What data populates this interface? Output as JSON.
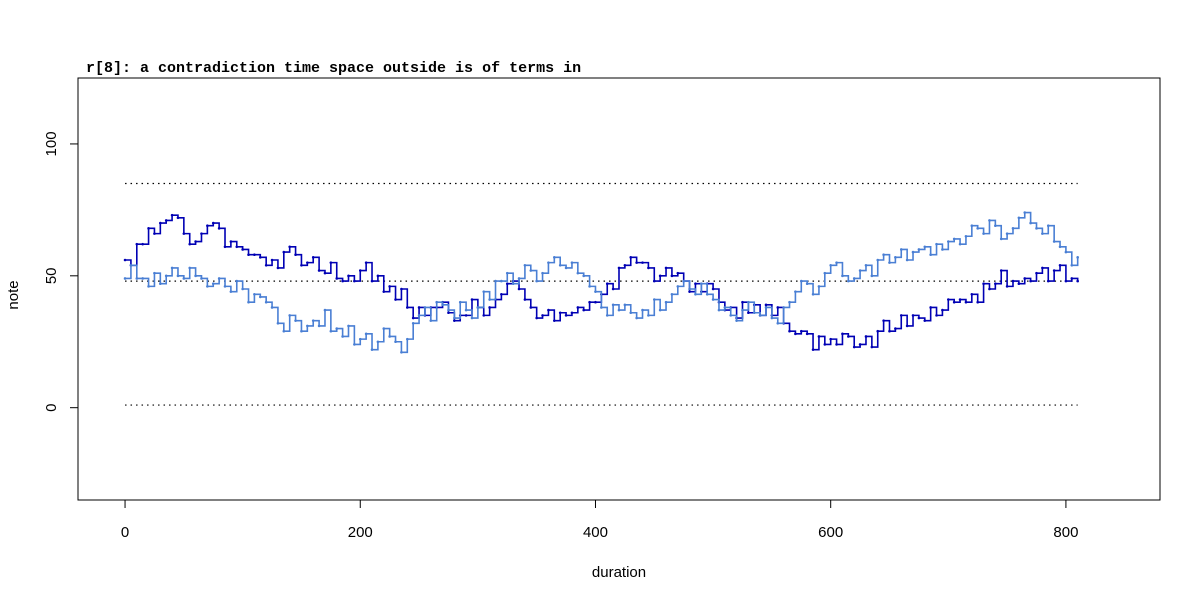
{
  "chart_data": {
    "type": "line",
    "title": "r[8]: a contradiction time space outside is of terms in",
    "xlabel": "duration",
    "ylabel": "note",
    "xlim": [
      -40,
      880
    ],
    "ylim": [
      -35,
      125
    ],
    "x_ticks": [
      0,
      200,
      400,
      600,
      800
    ],
    "y_ticks": [
      0,
      50,
      100
    ],
    "x_tick_labels": [
      "0",
      "200",
      "400",
      "600",
      "800"
    ],
    "y_tick_labels": [
      "0",
      "50",
      "100"
    ],
    "grid": false,
    "legend": "none",
    "step": true,
    "reference_lines": [
      {
        "y": 85,
        "x": [
          0,
          810
        ],
        "style": "dotted",
        "color": "#000000"
      },
      {
        "y": 48,
        "x": [
          0,
          810
        ],
        "style": "dotted",
        "color": "#000000"
      },
      {
        "y": 1,
        "x": [
          0,
          810
        ],
        "style": "dotted",
        "color": "#000000"
      }
    ],
    "series": [
      {
        "color": "#0000b4",
        "x": [
          0,
          5,
          10,
          15,
          20,
          25,
          30,
          35,
          40,
          45,
          50,
          55,
          60,
          65,
          70,
          75,
          80,
          85,
          90,
          95,
          100,
          105,
          110,
          115,
          120,
          125,
          130,
          135,
          140,
          145,
          150,
          155,
          160,
          165,
          170,
          175,
          180,
          185,
          190,
          195,
          200,
          205,
          210,
          215,
          220,
          225,
          230,
          235,
          240,
          245,
          250,
          255,
          260,
          265,
          270,
          275,
          280,
          285,
          290,
          295,
          300,
          305,
          310,
          315,
          320,
          325,
          330,
          335,
          340,
          345,
          350,
          355,
          360,
          365,
          370,
          375,
          380,
          385,
          390,
          395,
          400,
          405,
          410,
          415,
          420,
          425,
          430,
          435,
          440,
          445,
          450,
          455,
          460,
          465,
          470,
          475,
          480,
          485,
          490,
          495,
          500,
          505,
          510,
          515,
          520,
          525,
          530,
          535,
          540,
          545,
          550,
          555,
          560,
          565,
          570,
          575,
          580,
          585,
          590,
          595,
          600,
          605,
          610,
          615,
          620,
          625,
          630,
          635,
          640,
          645,
          650,
          655,
          660,
          665,
          670,
          675,
          680,
          685,
          690,
          695,
          700,
          705,
          710,
          715,
          720,
          725,
          730,
          735,
          740,
          745,
          750,
          755,
          760,
          765,
          770,
          775,
          780,
          785,
          790,
          795,
          800,
          805,
          810
        ],
        "y": [
          56,
          54,
          62,
          62,
          68,
          66,
          70,
          71,
          73,
          72,
          66,
          62,
          63,
          66,
          69,
          70,
          68,
          61,
          63,
          61,
          60,
          58,
          58,
          57,
          54,
          56,
          53,
          59,
          61,
          58,
          54,
          55,
          57,
          52,
          51,
          55,
          49,
          48,
          50,
          48,
          52,
          55,
          48,
          50,
          44,
          46,
          41,
          45,
          38,
          34,
          38,
          35,
          38,
          38,
          40,
          36,
          33,
          35,
          35,
          41,
          38,
          35,
          38,
          41,
          43,
          47,
          48,
          45,
          41,
          38,
          34,
          35,
          37,
          33,
          36,
          35,
          36,
          38,
          37,
          40,
          40,
          43,
          47,
          45,
          53,
          54,
          57,
          55,
          55,
          53,
          48,
          50,
          53,
          50,
          51,
          48,
          44,
          47,
          44,
          47,
          45,
          40,
          37,
          38,
          34,
          40,
          36,
          39,
          35,
          39,
          35,
          38,
          32,
          29,
          28,
          29,
          28,
          22,
          27,
          24,
          26,
          24,
          28,
          27,
          23,
          24,
          27,
          23,
          29,
          33,
          29,
          30,
          35,
          31,
          35,
          34,
          33,
          38,
          35,
          37,
          41,
          40,
          41,
          40,
          43,
          40,
          47,
          45,
          47,
          52,
          46,
          48,
          47,
          49,
          48,
          51,
          53,
          48,
          52,
          54,
          48,
          49,
          48
        ]
      },
      {
        "color": "#4a7fd4",
        "x": [
          0,
          5,
          10,
          15,
          20,
          25,
          30,
          35,
          40,
          45,
          50,
          55,
          60,
          65,
          70,
          75,
          80,
          85,
          90,
          95,
          100,
          105,
          110,
          115,
          120,
          125,
          130,
          135,
          140,
          145,
          150,
          155,
          160,
          165,
          170,
          175,
          180,
          185,
          190,
          195,
          200,
          205,
          210,
          215,
          220,
          225,
          230,
          235,
          240,
          245,
          250,
          255,
          260,
          265,
          270,
          275,
          280,
          285,
          290,
          295,
          300,
          305,
          310,
          315,
          320,
          325,
          330,
          335,
          340,
          345,
          350,
          355,
          360,
          365,
          370,
          375,
          380,
          385,
          390,
          395,
          400,
          405,
          410,
          415,
          420,
          425,
          430,
          435,
          440,
          445,
          450,
          455,
          460,
          465,
          470,
          475,
          480,
          485,
          490,
          495,
          500,
          505,
          510,
          515,
          520,
          525,
          530,
          535,
          540,
          545,
          550,
          555,
          560,
          565,
          570,
          575,
          580,
          585,
          590,
          595,
          600,
          605,
          610,
          615,
          620,
          625,
          630,
          635,
          640,
          645,
          650,
          655,
          660,
          665,
          670,
          675,
          680,
          685,
          690,
          695,
          700,
          705,
          710,
          715,
          720,
          725,
          730,
          735,
          740,
          745,
          750,
          755,
          760,
          765,
          770,
          775,
          780,
          785,
          790,
          795,
          800,
          805,
          810
        ],
        "y": [
          49,
          54,
          49,
          49,
          46,
          51,
          47,
          50,
          53,
          50,
          49,
          53,
          50,
          49,
          46,
          47,
          49,
          46,
          44,
          48,
          45,
          40,
          43,
          42,
          40,
          38,
          32,
          29,
          35,
          33,
          29,
          31,
          33,
          31,
          37,
          29,
          30,
          27,
          31,
          24,
          26,
          28,
          22,
          25,
          30,
          27,
          25,
          21,
          26,
          32,
          35,
          38,
          33,
          40,
          39,
          37,
          34,
          40,
          37,
          34,
          38,
          44,
          41,
          48,
          48,
          51,
          47,
          49,
          54,
          52,
          48,
          51,
          55,
          57,
          54,
          53,
          55,
          51,
          50,
          46,
          44,
          38,
          35,
          39,
          37,
          39,
          36,
          34,
          37,
          35,
          41,
          37,
          40,
          43,
          46,
          48,
          45,
          43,
          47,
          43,
          41,
          37,
          38,
          35,
          33,
          37,
          40,
          36,
          35,
          38,
          34,
          32,
          38,
          40,
          44,
          48,
          47,
          43,
          46,
          51,
          54,
          55,
          50,
          48,
          49,
          52,
          54,
          50,
          56,
          58,
          55,
          57,
          60,
          56,
          59,
          60,
          61,
          58,
          62,
          60,
          63,
          64,
          62,
          65,
          69,
          68,
          66,
          71,
          69,
          64,
          66,
          68,
          72,
          74,
          70,
          68,
          66,
          69,
          63,
          61,
          59,
          54,
          57
        ]
      }
    ]
  }
}
